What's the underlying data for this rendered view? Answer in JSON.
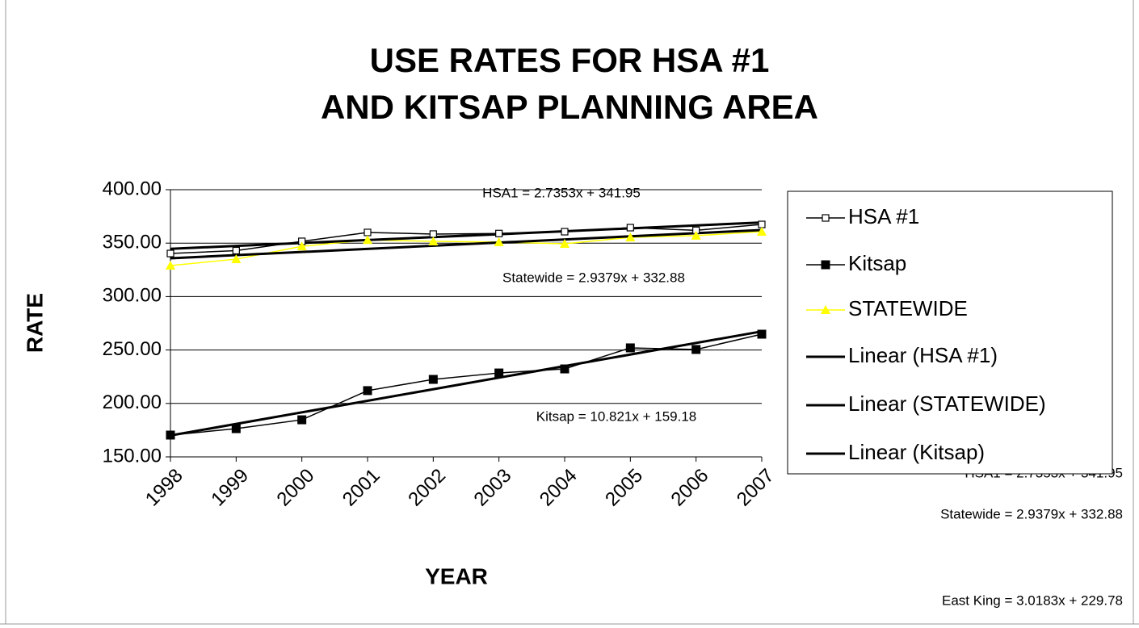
{
  "chart_data": {
    "type": "line",
    "title": [
      "USE RATES FOR HSA #1",
      "AND KITSAP PLANNING AREA"
    ],
    "x_label": "YEAR",
    "y_label": "RATE",
    "categories": [
      "1998",
      "1999",
      "2000",
      "2001",
      "2002",
      "2003",
      "2004",
      "2005",
      "2006",
      "2007"
    ],
    "series": [
      {
        "name": "HSA #1",
        "color": "#000000",
        "marker": "open-square",
        "values": [
          340.3,
          343,
          351.7,
          360,
          358.5,
          359,
          360.7,
          364.5,
          362,
          367.5
        ]
      },
      {
        "name": "Kitsap",
        "color": "#000000",
        "marker": "filled-square",
        "values": [
          170.4,
          176.4,
          184.7,
          212,
          222.5,
          228.5,
          232.3,
          252,
          250.5,
          264.8
        ]
      },
      {
        "name": "STATEWIDE",
        "color": "#ffff00",
        "marker": "triangle",
        "values": [
          329,
          335,
          347,
          353,
          351.7,
          351,
          349.4,
          355.4,
          357,
          360.7
        ]
      }
    ],
    "trendlines": [
      {
        "name": "Linear (HSA #1)",
        "color": "#000000",
        "slope": 2.7353,
        "intercept": 341.95
      },
      {
        "name": "Linear (STATEWIDE)",
        "color": "#000000",
        "slope": 2.9379,
        "intercept": 332.88
      },
      {
        "name": "Linear (Kitsap)",
        "color": "#000000",
        "slope": 10.821,
        "intercept": 159.18
      }
    ],
    "ylim": [
      150,
      400
    ],
    "yticks": [
      {
        "value": 150,
        "label": "150.00"
      },
      {
        "value": 200,
        "label": "200.00"
      },
      {
        "value": 250,
        "label": "250.00"
      },
      {
        "value": 300,
        "label": "300.00"
      },
      {
        "value": 350,
        "label": "350.00"
      },
      {
        "value": 400,
        "label": "400.00"
      }
    ],
    "grid": true,
    "legend": "right",
    "annotations": [
      "HSA1 = 2.7353x + 341.95",
      "Statewide = 2.9379x + 332.88",
      "Kitsap = 10.821x + 159.18",
      "HSA1 = 2.7353x + 341.95",
      "Statewide = 2.9379x + 332.88",
      "East King = 3.0183x + 229.78"
    ]
  }
}
